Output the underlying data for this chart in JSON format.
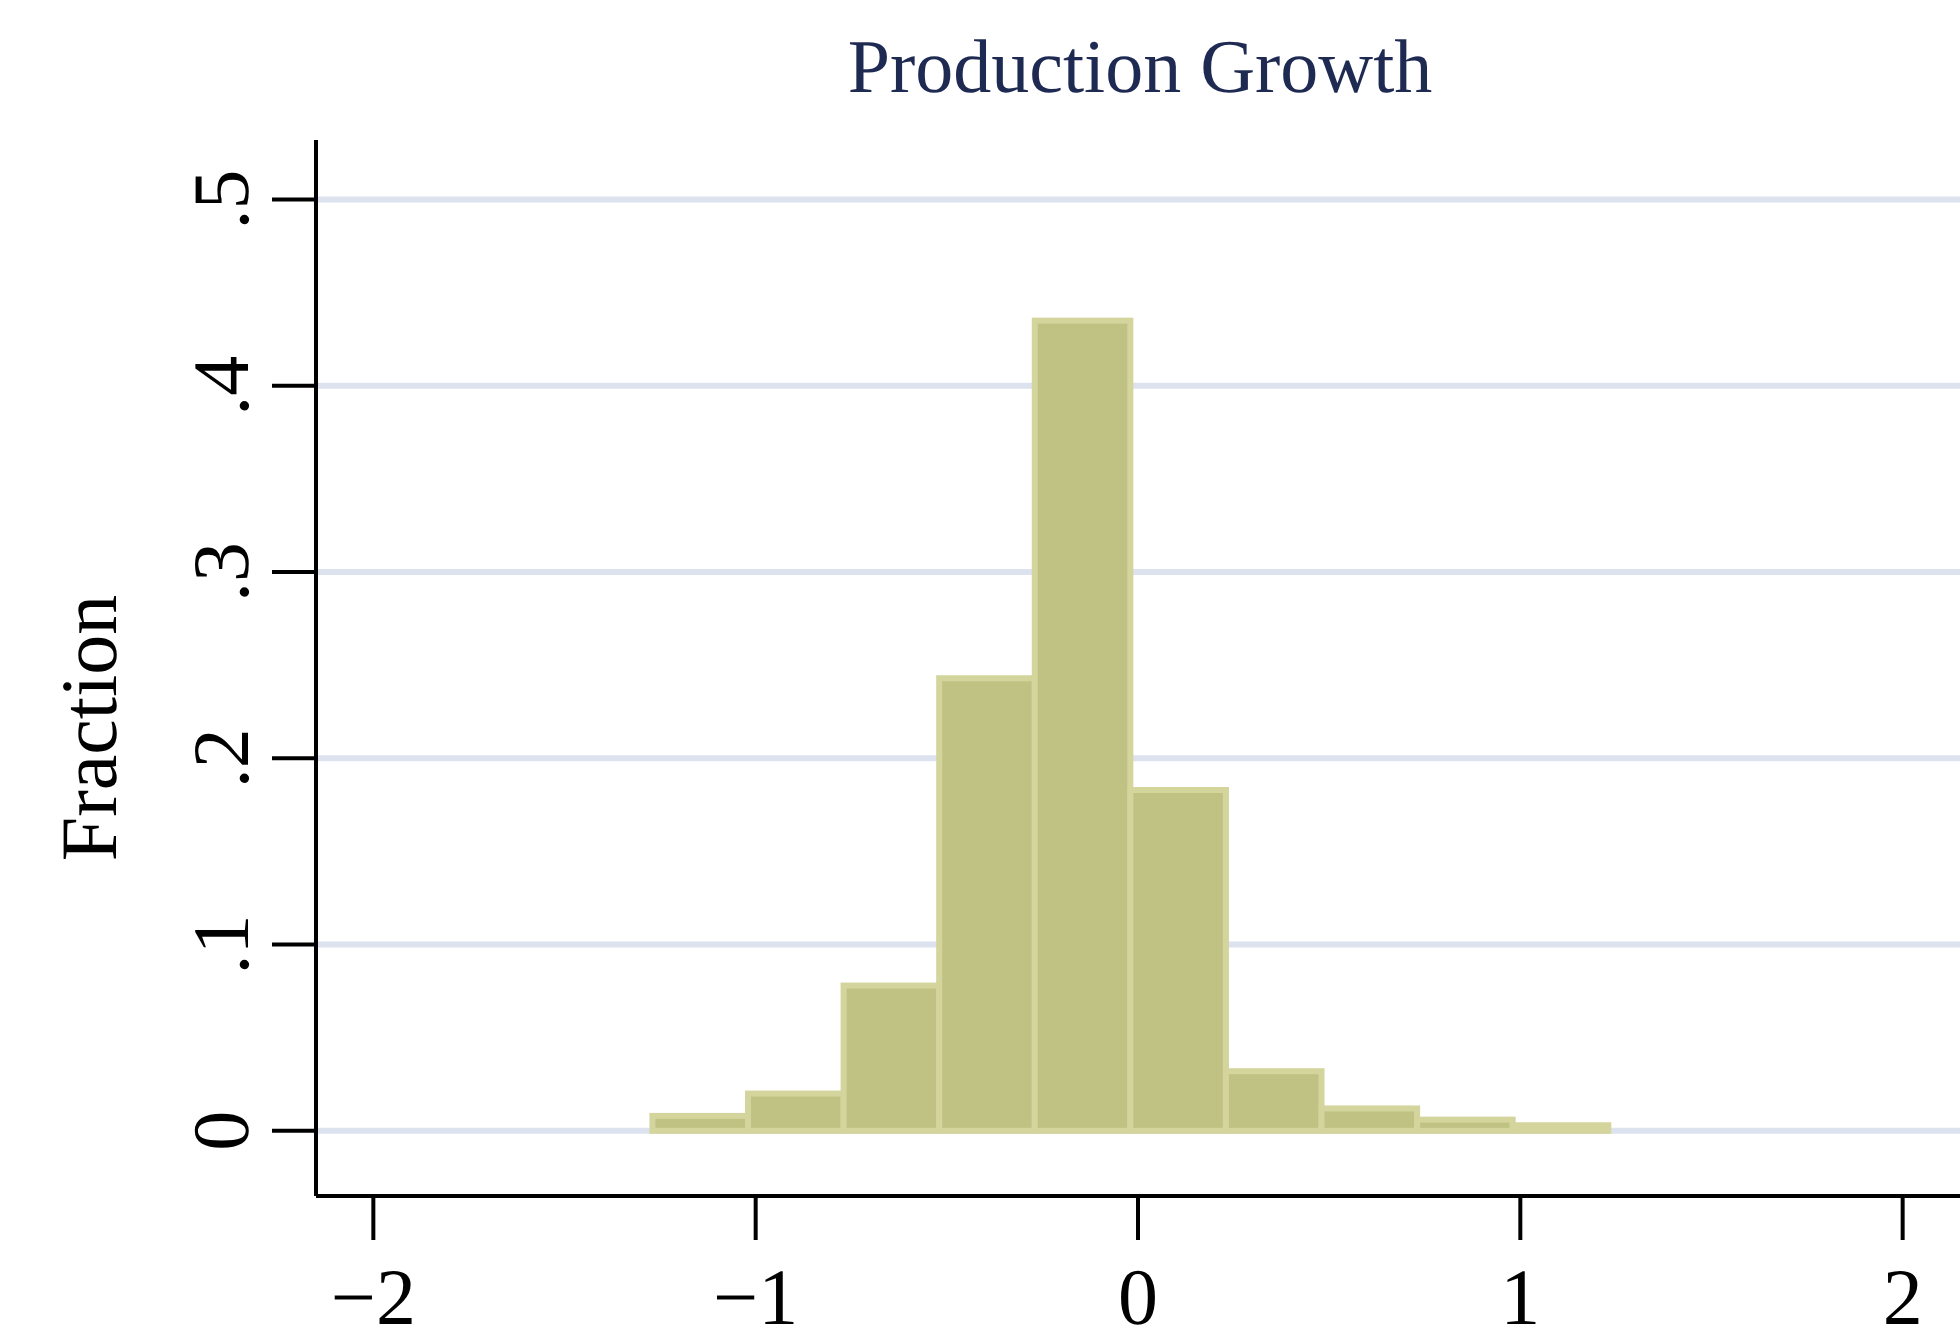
{
  "chart_data": {
    "type": "histogram",
    "title": "Production Growth",
    "ylabel": "Fraction",
    "bins": [
      -1.27,
      -1.02,
      -0.77,
      -0.52,
      -0.27,
      -0.02,
      0.23,
      0.48,
      0.73,
      0.98,
      1.23
    ],
    "values": [
      0.008,
      0.02,
      0.078,
      0.243,
      0.435,
      0.183,
      0.032,
      0.012,
      0.006,
      0.003
    ],
    "color": "#c0c283",
    "xlim": [
      -2.15,
      2.15
    ],
    "ylim": [
      -0.035,
      0.532
    ],
    "xticks": [
      {
        "value": -2,
        "label": "−2"
      },
      {
        "value": -1,
        "label": "−1"
      },
      0,
      1,
      2
    ],
    "yticks": [
      0,
      {
        "value": 0.1,
        "label": ".1"
      },
      {
        "value": 0.2,
        "label": ".2"
      },
      {
        "value": 0.3,
        "label": ".3"
      },
      {
        "value": 0.4,
        "label": ".4"
      },
      {
        "value": 0.5,
        "label": ".5"
      }
    ],
    "grid": "y"
  }
}
